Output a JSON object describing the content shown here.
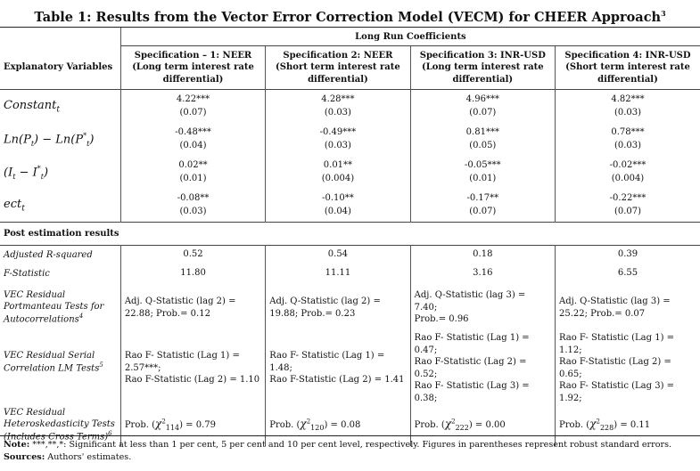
{
  "title": "Table 1: Results from the Vector Error Correction Model (VECM) for CHEER Approach",
  "title_footnote": "3",
  "header": {
    "group_label": "Long Run Coefficients",
    "row_label": "Explanatory Variables",
    "specs": [
      {
        "line1": "Specification – 1: NEER",
        "line2": "(Long term interest rate",
        "line3": "differential)"
      },
      {
        "line1": "Specification 2: NEER",
        "line2": "(Short term interest rate",
        "line3": "differential)"
      },
      {
        "line1": "Specification 3: INR-USD",
        "line2": "(Long term interest rate",
        "line3": "differential)"
      },
      {
        "line1": "Specification 4: INR-USD",
        "line2": "(Short term interest rate",
        "line3": "differential)"
      }
    ]
  },
  "coefficients": [
    {
      "variable": "Constant",
      "sub": "t",
      "cells": [
        {
          "coef": "4.22***",
          "se": "(0.07)"
        },
        {
          "coef": "4.28***",
          "se": "(0.03)"
        },
        {
          "coef": "4.96***",
          "se": "(0.07)"
        },
        {
          "coef": "4.82***",
          "se": "(0.03)"
        }
      ]
    },
    {
      "variable": "Ln(Pt) − Ln(P*t)",
      "cells": [
        {
          "coef": "-0.48***",
          "se": "(0.04)"
        },
        {
          "coef": "-0.49***",
          "se": "(0.03)"
        },
        {
          "coef": "0.81***",
          "se": "(0.05)"
        },
        {
          "coef": "0.78***",
          "se": "(0.03)"
        }
      ]
    },
    {
      "variable": "(It − I*t)",
      "cells": [
        {
          "coef": "0.02**",
          "se": "(0.01)"
        },
        {
          "coef": "0.01**",
          "se": "(0.004)"
        },
        {
          "coef": "-0.05***",
          "se": "(0.01)"
        },
        {
          "coef": "-0.02***",
          "se": "(0.004)"
        }
      ]
    },
    {
      "variable": "ect",
      "sub": "t",
      "cells": [
        {
          "coef": "-0.08**",
          "se": "(0.03)"
        },
        {
          "coef": "-0.10**",
          "se": "(0.04)"
        },
        {
          "coef": "-0.17**",
          "se": "(0.07)"
        },
        {
          "coef": "-0.22***",
          "se": "(0.07)"
        }
      ]
    }
  ],
  "post": {
    "section_label": "Post estimation results",
    "adj_r2": {
      "label": "Adjusted R-squared",
      "values": [
        "0.52",
        "0.54",
        "0.18",
        "0.39"
      ]
    },
    "f_stat": {
      "label": "F-Statistic",
      "values": [
        "11.80",
        "11.11",
        "3.16",
        "6.55"
      ]
    },
    "portmanteau": {
      "label_l1": "VEC Residual",
      "label_l2": "Portmanteau Tests for",
      "label_l3": "Autocorrelations",
      "label_fn": "4",
      "values": [
        {
          "l1": "Adj. Q-Statistic (lag 2) =",
          "l2": "22.88; Prob.= 0.12"
        },
        {
          "l1": "Adj. Q-Statistic (lag 2) =",
          "l2": "19.88; Prob.= 0.23"
        },
        {
          "l1": "Adj. Q-Statistic (lag 3) = 7.40;",
          "l2": "Prob.= 0.96"
        },
        {
          "l1": "Adj. Q-Statistic (lag 3) =",
          "l2": "25.22; Prob.= 0.07"
        }
      ]
    },
    "serial": {
      "label_l1": "VEC Residual Serial",
      "label_l2": "Correlation LM Tests",
      "label_fn": "5",
      "values": [
        {
          "l1": "Rao F- Statistic (Lag 1) =",
          "l2": "2.57***;",
          "l3": "Rao F-Statistic (Lag 2) = 1.10"
        },
        {
          "l1": "Rao F- Statistic (Lag 1) = 1.48;",
          "l2": "Rao F-Statistic (Lag 2) = 1.41",
          "l3": ""
        },
        {
          "l1": "Rao F- Statistic (Lag 1) = 0.47;",
          "l2": "Rao F-Statistic (Lag 2) = 0.52;",
          "l3": "Rao F- Statistic (Lag 3) = 0.38;"
        },
        {
          "l1": "Rao F- Statistic (Lag 1) = 1.12;",
          "l2": "Rao F-Statistic (Lag 2) = 0.65;",
          "l3": "Rao F- Statistic (Lag 3) = 1.92;"
        }
      ]
    },
    "hetero": {
      "label_l1": "VEC Residual",
      "label_l2": "Heteroskedasticity Tests",
      "label_l3": "(Includes Cross Terms)",
      "label_fn": "6",
      "values": [
        {
          "prefix": "Prob. (",
          "chi": "χ",
          "sup": "2",
          "sub": "114",
          "suffix": ") = 0.79"
        },
        {
          "prefix": "Prob. (",
          "chi": "χ",
          "sup": "2",
          "sub": "120",
          "suffix": ") = 0.08"
        },
        {
          "prefix": "Prob. (",
          "chi": "χ",
          "sup": "2",
          "sub": "222",
          "suffix": ") = 0.00"
        },
        {
          "prefix": "Prob. (",
          "chi": "χ",
          "sup": "2",
          "sub": "228",
          "suffix": ") = 0.11"
        }
      ]
    }
  },
  "notes": {
    "note_label": "Note:",
    "note_text": " ***,**,*: Significant at less than 1 per cent, 5 per cent and 10 per cent level, respectively. Figures in parentheses represent robust standard errors.",
    "source_label": "Sources:",
    "source_text": " Authors' estimates."
  }
}
